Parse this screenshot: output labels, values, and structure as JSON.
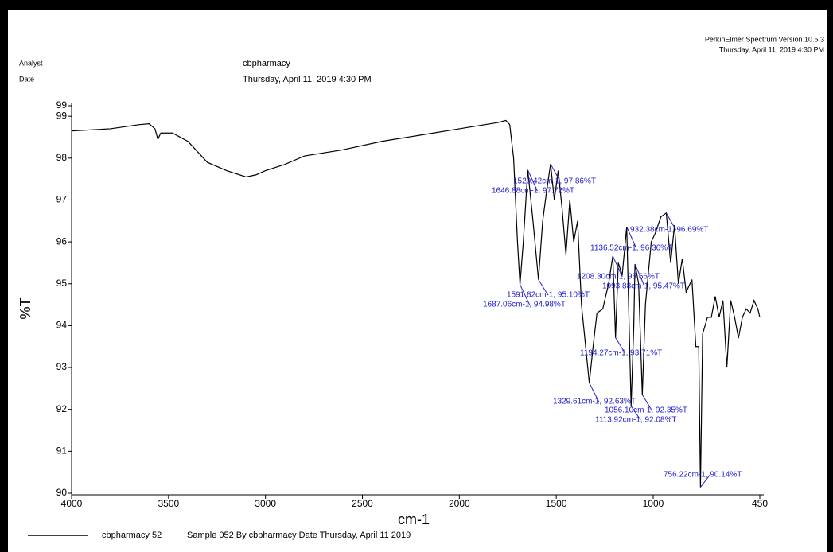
{
  "chart_data": {
    "type": "line",
    "software": "PerkinElmer Spectrum Version 10.5.3",
    "printed": "Thursday, April 11, 2019 4:30 PM",
    "analyst_label": "Analyst",
    "date_label": "Date",
    "analyst": "cbpharmacy",
    "date": "Thursday, April 11, 2019 4:30 PM",
    "x_label": "cm-1",
    "y_label": "%T",
    "xlim": [
      4000,
      450
    ],
    "xticks": [
      4000,
      3500,
      3000,
      2500,
      2000,
      1500,
      1000,
      450
    ],
    "ylim": [
      90,
      99.25
    ],
    "yticks": [
      90,
      91,
      92,
      93,
      94,
      95,
      96,
      97,
      98,
      99,
      {
        "value": 99.25,
        "label": "99"
      }
    ],
    "grid": false,
    "series": [
      {
        "name": "cbpharmacy 52",
        "description": "Sample 052 By cbpharmacy Date Thursday, April 11 2019",
        "color": "#000000",
        "x": [
          4000,
          3800,
          3650,
          3600,
          3570,
          3555,
          3540,
          3480,
          3400,
          3300,
          3200,
          3100,
          3050,
          3000,
          2900,
          2800,
          2600,
          2400,
          2200,
          2000,
          1800,
          1760,
          1740,
          1720,
          1700,
          1687.06,
          1670,
          1646.88,
          1620,
          1591.82,
          1570,
          1550,
          1529.42,
          1510,
          1490,
          1470,
          1450,
          1430,
          1410,
          1390,
          1370,
          1329.61,
          1310,
          1290,
          1260,
          1230,
          1208.3,
          1194.27,
          1180,
          1160,
          1136.52,
          1113.92,
          1100,
          1093.88,
          1075,
          1056.1,
          1040,
          1010,
          990,
          960,
          932.38,
          910,
          890,
          870,
          850,
          830,
          800,
          780,
          765,
          756.22,
          745,
          720,
          700,
          680,
          660,
          640,
          620,
          600,
          580,
          560,
          540,
          520,
          500,
          480,
          460,
          450
        ],
        "values": [
          98.65,
          98.7,
          98.8,
          98.82,
          98.7,
          98.45,
          98.6,
          98.6,
          98.4,
          97.9,
          97.7,
          97.55,
          97.6,
          97.7,
          97.85,
          98.05,
          98.2,
          98.4,
          98.55,
          98.7,
          98.85,
          98.9,
          98.8,
          98.0,
          96.0,
          94.98,
          96.0,
          97.72,
          96.5,
          95.1,
          96.5,
          97.2,
          97.86,
          97.0,
          97.7,
          96.8,
          95.7,
          97.0,
          96.0,
          96.5,
          94.5,
          92.63,
          93.5,
          94.3,
          94.4,
          95.0,
          95.66,
          93.71,
          95.5,
          95.2,
          96.36,
          92.08,
          94.0,
          95.47,
          95.0,
          92.35,
          94.5,
          96.0,
          96.2,
          96.6,
          96.69,
          95.5,
          96.4,
          95.0,
          95.6,
          94.8,
          95.1,
          93.5,
          93.5,
          90.14,
          93.8,
          94.2,
          94.2,
          94.7,
          94.2,
          94.6,
          93.0,
          94.6,
          94.2,
          93.7,
          94.2,
          94.4,
          94.3,
          94.6,
          94.4,
          94.2
        ]
      }
    ],
    "annotations": [
      {
        "x": 1529.42,
        "y": 97.86,
        "label": "1529.42cm-1, 97.86%T"
      },
      {
        "x": 1646.88,
        "y": 97.72,
        "label": "1646.88cm-1, 97.72%T"
      },
      {
        "x": 932.38,
        "y": 96.69,
        "label": "932.38cm-1, 96.69%T"
      },
      {
        "x": 1136.52,
        "y": 96.36,
        "label": "1136.52cm-1, 96.36%T"
      },
      {
        "x": 1208.3,
        "y": 95.66,
        "label": "1208.30cm-1, 95.66%T"
      },
      {
        "x": 1093.88,
        "y": 95.47,
        "label": "1093.88cm-1, 95.47%T"
      },
      {
        "x": 1591.82,
        "y": 95.1,
        "label": "1591.82cm-1, 95.10%T"
      },
      {
        "x": 1687.06,
        "y": 94.98,
        "label": "1687.06cm-1, 94.98%T"
      },
      {
        "x": 1194.27,
        "y": 93.71,
        "label": "1194.27cm-1, 93.71%T"
      },
      {
        "x": 1329.61,
        "y": 92.63,
        "label": "1329.61cm-1, 92.63%T"
      },
      {
        "x": 1056.1,
        "y": 92.35,
        "label": "1056.10cm-1, 92.35%T"
      },
      {
        "x": 1113.92,
        "y": 92.08,
        "label": "1113.92cm-1, 92.08%T"
      },
      {
        "x": 756.22,
        "y": 90.14,
        "label": "756.22cm-1, 90.14%T"
      }
    ]
  }
}
